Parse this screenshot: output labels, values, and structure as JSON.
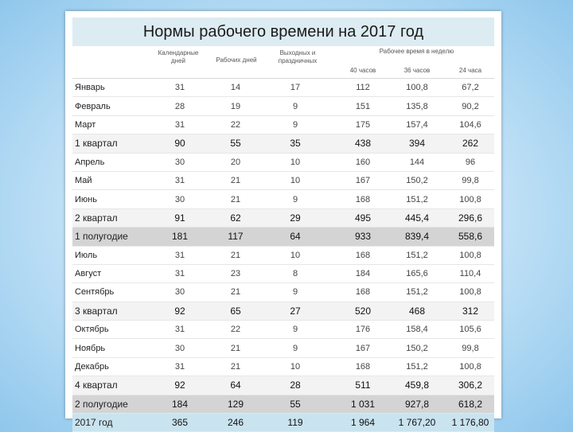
{
  "title": "Нормы рабочего времени на 2017 год",
  "headers": {
    "calendar_days": "Календарные дней",
    "work_days": "Рабочих дней",
    "weekends": "Выходных и праздничных",
    "work_time_per_week": "Рабочее время в неделю",
    "h40": "40 часов",
    "h36": "36 часов",
    "h24": "24 часа"
  },
  "rows": [
    {
      "name": "Январь",
      "cal": "31",
      "work": "14",
      "off": "17",
      "h40": "112",
      "h36": "100,8",
      "h24": "67,2",
      "kind": "month"
    },
    {
      "name": "Февраль",
      "cal": "28",
      "work": "19",
      "off": "9",
      "h40": "151",
      "h36": "135,8",
      "h24": "90,2",
      "kind": "month"
    },
    {
      "name": "Март",
      "cal": "31",
      "work": "22",
      "off": "9",
      "h40": "175",
      "h36": "157,4",
      "h24": "104,6",
      "kind": "month"
    },
    {
      "name": "1 квартал",
      "cal": "90",
      "work": "55",
      "off": "35",
      "h40": "438",
      "h36": "394",
      "h24": "262",
      "kind": "quarter"
    },
    {
      "name": "Апрель",
      "cal": "30",
      "work": "20",
      "off": "10",
      "h40": "160",
      "h36": "144",
      "h24": "96",
      "kind": "month"
    },
    {
      "name": "Май",
      "cal": "31",
      "work": "21",
      "off": "10",
      "h40": "167",
      "h36": "150,2",
      "h24": "99,8",
      "kind": "month"
    },
    {
      "name": "Июнь",
      "cal": "30",
      "work": "21",
      "off": "9",
      "h40": "168",
      "h36": "151,2",
      "h24": "100,8",
      "kind": "month"
    },
    {
      "name": "2 квартал",
      "cal": "91",
      "work": "62",
      "off": "29",
      "h40": "495",
      "h36": "445,4",
      "h24": "296,6",
      "kind": "quarter"
    },
    {
      "name": "1 полугодие",
      "cal": "181",
      "work": "117",
      "off": "64",
      "h40": "933",
      "h36": "839,4",
      "h24": "558,6",
      "kind": "half"
    },
    {
      "name": "Июль",
      "cal": "31",
      "work": "21",
      "off": "10",
      "h40": "168",
      "h36": "151,2",
      "h24": "100,8",
      "kind": "month"
    },
    {
      "name": "Август",
      "cal": "31",
      "work": "23",
      "off": "8",
      "h40": "184",
      "h36": "165,6",
      "h24": "110,4",
      "kind": "month"
    },
    {
      "name": "Сентябрь",
      "cal": "30",
      "work": "21",
      "off": "9",
      "h40": "168",
      "h36": "151,2",
      "h24": "100,8",
      "kind": "month"
    },
    {
      "name": "3 квартал",
      "cal": "92",
      "work": "65",
      "off": "27",
      "h40": "520",
      "h36": "468",
      "h24": "312",
      "kind": "quarter"
    },
    {
      "name": "Октябрь",
      "cal": "31",
      "work": "22",
      "off": "9",
      "h40": "176",
      "h36": "158,4",
      "h24": "105,6",
      "kind": "month"
    },
    {
      "name": "Ноябрь",
      "cal": "30",
      "work": "21",
      "off": "9",
      "h40": "167",
      "h36": "150,2",
      "h24": "99,8",
      "kind": "month"
    },
    {
      "name": "Декабрь",
      "cal": "31",
      "work": "21",
      "off": "10",
      "h40": "168",
      "h36": "151,2",
      "h24": "100,8",
      "kind": "month"
    },
    {
      "name": "4 квартал",
      "cal": "92",
      "work": "64",
      "off": "28",
      "h40": "511",
      "h36": "459,8",
      "h24": "306,2",
      "kind": "quarter"
    },
    {
      "name": "2 полугодие",
      "cal": "184",
      "work": "129",
      "off": "55",
      "h40": "1 031",
      "h36": "927,8",
      "h24": "618,2",
      "kind": "half"
    },
    {
      "name": "2017 год",
      "cal": "365",
      "work": "246",
      "off": "119",
      "h40": "1 964",
      "h36": "1 767,20",
      "h24": "1 176,80",
      "kind": "year"
    }
  ]
}
